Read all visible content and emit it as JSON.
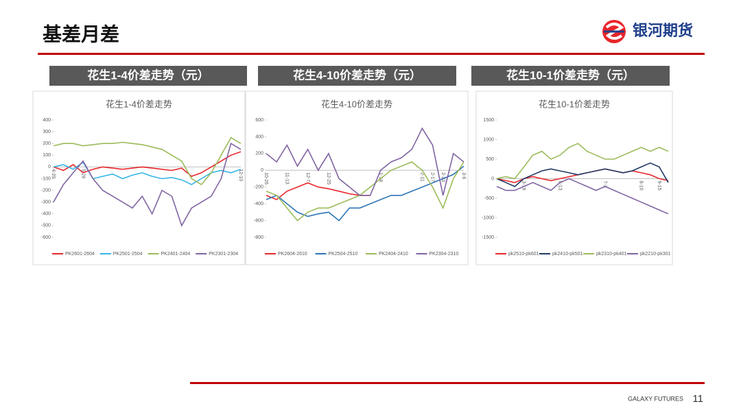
{
  "header": {
    "title": "基差月差",
    "brand": "银河期货"
  },
  "panels": [
    "花生1-4价差走势（元）",
    "花生4-10价差走势（元）",
    "花生10-1价差走势（元）"
  ],
  "chart_data": [
    {
      "type": "line",
      "title": "花生1-4价差走势",
      "categories": [
        "4-20",
        null,
        null,
        "5-26",
        null,
        null,
        null,
        null,
        null,
        null,
        null,
        null,
        null,
        null,
        null,
        null,
        null,
        null,
        null,
        "12-10"
      ],
      "ylim": [
        -600,
        400
      ],
      "yticks": [
        -600,
        -500,
        -400,
        -300,
        -200,
        -100,
        0,
        100,
        200,
        300,
        400
      ],
      "series": [
        {
          "name": "PK2601-2604",
          "color": "#e8262b",
          "values": [
            0,
            -30,
            20,
            -50,
            -20,
            0,
            -10,
            -20,
            -10,
            0,
            -10,
            -20,
            -30,
            -10,
            -80,
            -50,
            0,
            50,
            100,
            130
          ]
        },
        {
          "name": "PK2501-2504",
          "color": "#33b5e5",
          "values": [
            0,
            20,
            -20,
            40,
            -100,
            -80,
            -60,
            -100,
            -70,
            -50,
            -80,
            -100,
            -90,
            -110,
            -150,
            -100,
            -50,
            -30,
            -50,
            -20
          ]
        },
        {
          "name": "PK2401-2404",
          "color": "#9bbb59",
          "values": [
            180,
            200,
            200,
            180,
            190,
            200,
            200,
            210,
            200,
            190,
            170,
            150,
            100,
            50,
            -100,
            -150,
            -50,
            100,
            250,
            200
          ]
        },
        {
          "name": "PK2301-2304",
          "color": "#8064a2",
          "values": [
            -300,
            -150,
            -50,
            50,
            -100,
            -200,
            -250,
            -300,
            -350,
            -250,
            -400,
            -200,
            -250,
            -500,
            -350,
            -300,
            -250,
            -100,
            200,
            150
          ]
        }
      ]
    },
    {
      "type": "line",
      "title": "花生4-10价差走势",
      "categories": [
        "10-26",
        null,
        "11-13",
        null,
        "12-7",
        null,
        "12-25",
        null,
        null,
        null,
        null,
        "1-18",
        null,
        null,
        null,
        "2-11",
        "2-17",
        "2-23",
        null,
        "3-6"
      ],
      "ylim": [
        -800,
        600
      ],
      "yticks": [
        -800,
        -600,
        -400,
        -200,
        0,
        200,
        400,
        600
      ],
      "series": [
        {
          "name": "PK2604-2610",
          "color": "#e8262b",
          "values": [
            -300,
            -350,
            -250,
            -200,
            -150,
            -200,
            -220,
            -250,
            -280,
            -300,
            -300,
            null,
            null,
            null,
            null,
            null,
            null,
            null,
            null,
            null
          ]
        },
        {
          "name": "PK2504-2510",
          "color": "#2e75b6",
          "values": [
            -350,
            -300,
            -400,
            -500,
            -550,
            -520,
            -500,
            -600,
            -450,
            -450,
            -400,
            -350,
            -300,
            -300,
            -250,
            -200,
            -150,
            -100,
            -50,
            50
          ]
        },
        {
          "name": "PK2404-2410",
          "color": "#9bbb59",
          "values": [
            -250,
            -300,
            -450,
            -600,
            -500,
            -450,
            -450,
            -400,
            -350,
            -300,
            -200,
            -100,
            0,
            50,
            100,
            0,
            -200,
            -450,
            -100,
            100
          ]
        },
        {
          "name": "PK2304-2310",
          "color": "#8064a2",
          "values": [
            200,
            100,
            300,
            50,
            250,
            0,
            200,
            -100,
            -200,
            -300,
            -300,
            0,
            100,
            150,
            250,
            500,
            300,
            -300,
            200,
            100
          ]
        }
      ]
    },
    {
      "type": "line",
      "title": "花生10-1价差走势",
      "categories": [
        null,
        null,
        null,
        "3-19",
        null,
        null,
        null,
        "5-13",
        null,
        null,
        null,
        null,
        "7-3",
        null,
        null,
        null,
        "8-10",
        null,
        "9-15",
        null
      ],
      "ylim": [
        -1500,
        1500
      ],
      "yticks": [
        -1500,
        -1000,
        -500,
        0,
        500,
        1000,
        1500
      ],
      "series": [
        {
          "name": "pk2510-pk601",
          "color": "#e8262b",
          "values": [
            0,
            -50,
            -100,
            0,
            50,
            0,
            -50,
            0,
            50,
            100,
            150,
            200,
            250,
            200,
            150,
            200,
            150,
            100,
            0,
            -50
          ]
        },
        {
          "name": "pk2410-pk501",
          "color": "#1f3864",
          "values": [
            0,
            -100,
            -200,
            0,
            100,
            200,
            250,
            200,
            150,
            100,
            150,
            200,
            250,
            200,
            150,
            200,
            300,
            400,
            300,
            -100
          ]
        },
        {
          "name": "pk2310-pk401",
          "color": "#9bbb59",
          "values": [
            0,
            50,
            0,
            300,
            600,
            700,
            500,
            600,
            800,
            900,
            700,
            600,
            500,
            500,
            600,
            700,
            800,
            700,
            800,
            700
          ]
        },
        {
          "name": "pk2210-pk301",
          "color": "#8064a2",
          "values": [
            -200,
            -300,
            -300,
            -200,
            -100,
            -200,
            -300,
            -100,
            0,
            -100,
            -200,
            -300,
            -200,
            -300,
            -400,
            -500,
            -600,
            -700,
            -800,
            -900
          ]
        }
      ]
    }
  ],
  "footer": {
    "company": "GALAXY FUTURES",
    "page": "11"
  }
}
